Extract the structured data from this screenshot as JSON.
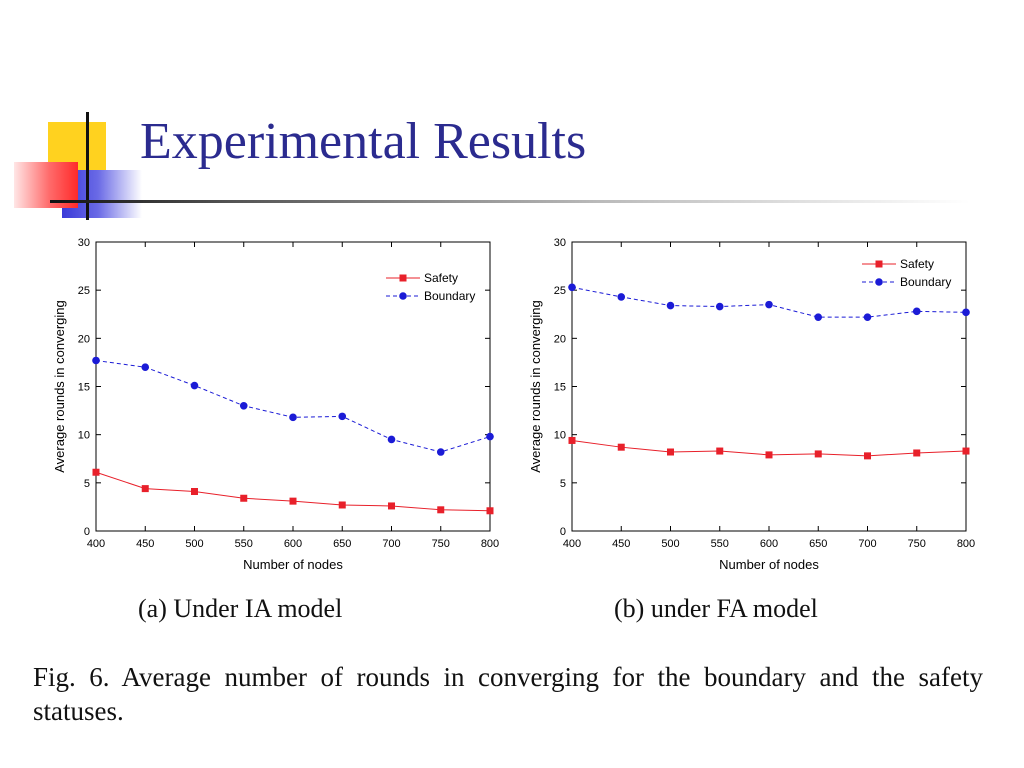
{
  "slide": {
    "title": "Experimental Results",
    "figure_caption": "Fig. 6.    Average number of rounds in converging for the boundary and the safety statuses."
  },
  "colors": {
    "title": "#2b2b8f",
    "safety": "#e8202a",
    "boundary": "#1b1bd6",
    "deco_yellow": "#ffd21f",
    "deco_blue": "#3a3ad8",
    "deco_red": "#ff3b3b"
  },
  "chart_data": [
    {
      "type": "line",
      "subcaption": "(a) Under IA model",
      "xlabel": "Number of nodes",
      "ylabel": "Average rounds in converging",
      "x": [
        400,
        450,
        500,
        550,
        600,
        650,
        700,
        750,
        800
      ],
      "xlim": [
        400,
        800
      ],
      "ylim": [
        0,
        30
      ],
      "xticks": [
        "400",
        "450",
        "500",
        "550",
        "600",
        "650",
        "700",
        "750",
        "800"
      ],
      "yticks": [
        "0",
        "5",
        "10",
        "15",
        "20",
        "25",
        "30"
      ],
      "legend_position": "top-right",
      "series": [
        {
          "name": "Safety",
          "marker": "square",
          "line": "solid",
          "values": [
            6.1,
            4.4,
            4.1,
            3.4,
            3.1,
            2.7,
            2.6,
            2.2,
            2.1
          ]
        },
        {
          "name": "Boundary",
          "marker": "circle",
          "line": "dashed",
          "values": [
            17.7,
            17.0,
            15.1,
            13.0,
            11.8,
            11.9,
            9.5,
            8.2,
            9.8
          ]
        }
      ]
    },
    {
      "type": "line",
      "subcaption": "(b) under FA model",
      "xlabel": "Number of nodes",
      "ylabel": "Average rounds in converging",
      "x": [
        400,
        450,
        500,
        550,
        600,
        650,
        700,
        750,
        800
      ],
      "xlim": [
        400,
        800
      ],
      "ylim": [
        0,
        30
      ],
      "xticks": [
        "400",
        "450",
        "500",
        "550",
        "600",
        "650",
        "700",
        "750",
        "800"
      ],
      "yticks": [
        "0",
        "5",
        "10",
        "15",
        "20",
        "25",
        "30"
      ],
      "legend_position": "top-right",
      "series": [
        {
          "name": "Safety",
          "marker": "square",
          "line": "solid",
          "values": [
            9.4,
            8.7,
            8.2,
            8.3,
            7.9,
            8.0,
            7.8,
            8.1,
            8.3
          ]
        },
        {
          "name": "Boundary",
          "marker": "circle",
          "line": "dashed",
          "values": [
            25.3,
            24.3,
            23.4,
            23.3,
            23.5,
            22.2,
            22.2,
            22.8,
            22.7
          ]
        }
      ]
    }
  ]
}
